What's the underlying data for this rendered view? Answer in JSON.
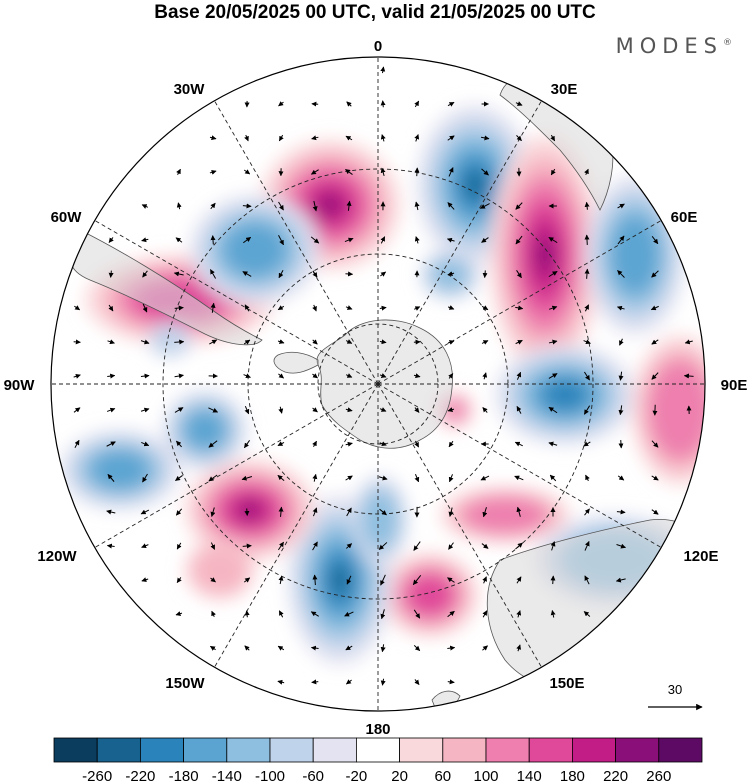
{
  "title": "Base 20/05/2025 00 UTC, valid 21/05/2025 00 UTC",
  "brand": "MODES",
  "brand_mark": "®",
  "map": {
    "projection": "south polar stereographic",
    "longitude_labels": [
      "0",
      "30E",
      "60E",
      "90E",
      "120E",
      "150E",
      "180",
      "150W",
      "120W",
      "90W",
      "60W",
      "30W"
    ],
    "vector_reference": {
      "value": "30"
    },
    "anomaly_centers": [
      {
        "sign": "positive",
        "near_longitude": "0"
      },
      {
        "sign": "negative",
        "near_longitude": "30E"
      },
      {
        "sign": "positive",
        "near_longitude": "30E-60E"
      },
      {
        "sign": "negative",
        "near_longitude": "60E"
      },
      {
        "sign": "negative",
        "near_longitude": "90E"
      },
      {
        "sign": "positive",
        "near_longitude": "90E"
      },
      {
        "sign": "negative",
        "near_longitude": "120E"
      },
      {
        "sign": "positive",
        "near_longitude": "150E"
      },
      {
        "sign": "negative",
        "near_longitude": "180"
      },
      {
        "sign": "positive",
        "near_longitude": "150W"
      },
      {
        "sign": "negative",
        "near_longitude": "90W-120W"
      },
      {
        "sign": "positive",
        "near_longitude": "60W-90W"
      },
      {
        "sign": "negative",
        "near_longitude": "30W-60W"
      }
    ]
  },
  "colorbar": {
    "ticks": [
      "-260",
      "-220",
      "-180",
      "-140",
      "-100",
      "-60",
      "-20",
      "20",
      "60",
      "100",
      "140",
      "180",
      "220",
      "260"
    ],
    "colors": [
      "#0b3d5e",
      "#17628f",
      "#2a84bb",
      "#5ba4d2",
      "#8fbfe0",
      "#bfd3ea",
      "#e3e3f1",
      "#ffffff",
      "#fad9dc",
      "#f6b5c2",
      "#ee7fae",
      "#e0489a",
      "#c21c86",
      "#8b0f78",
      "#5c0a63"
    ]
  }
}
